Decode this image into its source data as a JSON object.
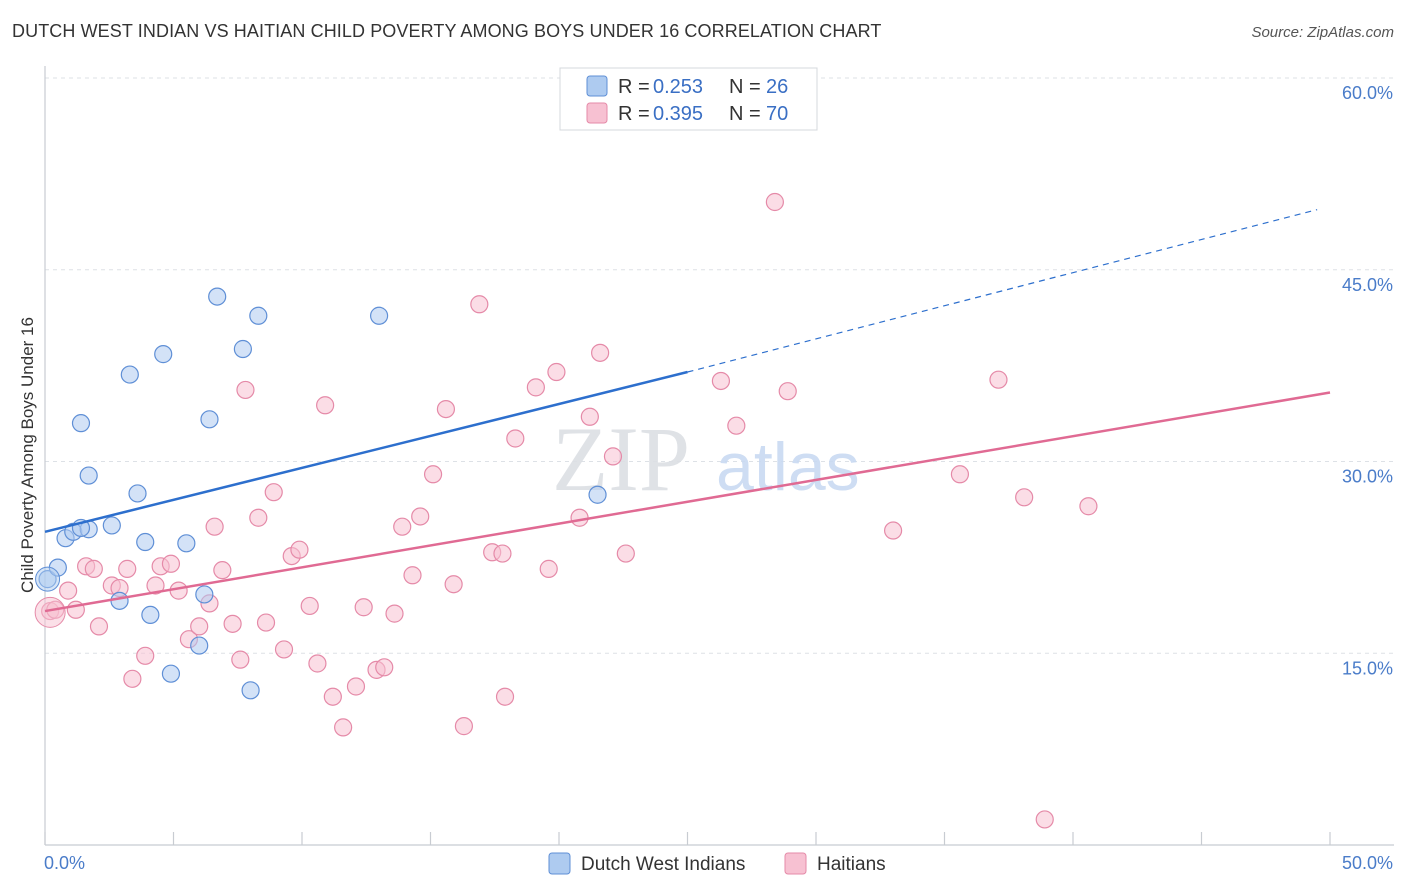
{
  "header": {
    "title": "DUTCH WEST INDIAN VS HAITIAN CHILD POVERTY AMONG BOYS UNDER 16 CORRELATION CHART",
    "source": "Source: ZipAtlas.com"
  },
  "watermark": {
    "zip": "ZIP",
    "atlas": "atlas"
  },
  "colors": {
    "blue_fill": "#aecbf0",
    "blue_stroke": "#5f8fd6",
    "blue_line": "#2d6fcd",
    "pink_fill": "#f7c1d2",
    "pink_stroke": "#e58aa8",
    "pink_line": "#e06a93",
    "tick": "#4a7cc9",
    "grid": "#dde1e6"
  },
  "legend": {
    "r_label": "R =",
    "n_label": "N =",
    "blue": {
      "r": "0.253",
      "n": "26"
    },
    "pink": {
      "r": "0.395",
      "n": "70"
    }
  },
  "chart_data": {
    "type": "scatter",
    "title": "DUTCH WEST INDIAN VS HAITIAN CHILD POVERTY AMONG BOYS UNDER 16 CORRELATION CHART",
    "xlabel": "",
    "ylabel": "Child Poverty Among Boys Under 16",
    "xlim": [
      0,
      50
    ],
    "ylim": [
      0,
      60
    ],
    "x_tick_labels": [
      "0.0%",
      "50.0%"
    ],
    "y_ticks": [
      15,
      30,
      45,
      60
    ],
    "y_tick_labels": [
      "15.0%",
      "30.0%",
      "45.0%",
      "60.0%"
    ],
    "series": [
      {
        "name": "Dutch West Indians",
        "r": 0.253,
        "n": 26,
        "trend": {
          "x0": 0,
          "y0": 24.5,
          "x1": 25,
          "y1": 37.0,
          "dashed_to": 49.5,
          "dashed_y": 49.7
        },
        "points": [
          [
            0.1,
            20.8
          ],
          [
            0.5,
            21.7
          ],
          [
            0.8,
            24.0
          ],
          [
            1.1,
            24.5
          ],
          [
            1.7,
            24.7
          ],
          [
            1.4,
            33.0
          ],
          [
            1.7,
            28.9
          ],
          [
            2.6,
            25.0
          ],
          [
            2.9,
            19.1
          ],
          [
            3.3,
            36.8
          ],
          [
            3.6,
            27.5
          ],
          [
            3.9,
            23.7
          ],
          [
            4.1,
            18.0
          ],
          [
            4.6,
            38.4
          ],
          [
            4.9,
            13.4
          ],
          [
            5.5,
            23.6
          ],
          [
            6.0,
            15.6
          ],
          [
            6.2,
            19.6
          ],
          [
            6.4,
            33.3
          ],
          [
            6.7,
            42.9
          ],
          [
            7.7,
            38.8
          ],
          [
            8.0,
            12.1
          ],
          [
            8.3,
            41.4
          ],
          [
            13.0,
            41.4
          ],
          [
            21.5,
            27.4
          ],
          [
            1.4,
            24.8
          ]
        ]
      },
      {
        "name": "Haitians",
        "r": 0.395,
        "n": 70,
        "trend": {
          "x0": 0,
          "y0": 18.3,
          "x1": 50,
          "y1": 35.4
        },
        "points": [
          [
            0.2,
            18.3
          ],
          [
            0.4,
            18.4
          ],
          [
            0.9,
            19.9
          ],
          [
            1.2,
            18.4
          ],
          [
            1.6,
            21.8
          ],
          [
            1.9,
            21.6
          ],
          [
            2.1,
            17.1
          ],
          [
            2.6,
            20.3
          ],
          [
            2.9,
            20.1
          ],
          [
            3.2,
            21.6
          ],
          [
            3.4,
            13.0
          ],
          [
            3.9,
            14.8
          ],
          [
            4.3,
            20.3
          ],
          [
            4.5,
            21.8
          ],
          [
            4.9,
            22.0
          ],
          [
            5.2,
            19.9
          ],
          [
            5.6,
            16.1
          ],
          [
            6.0,
            17.1
          ],
          [
            6.4,
            18.9
          ],
          [
            6.6,
            24.9
          ],
          [
            6.9,
            21.5
          ],
          [
            7.3,
            17.3
          ],
          [
            7.6,
            14.5
          ],
          [
            7.8,
            35.6
          ],
          [
            8.3,
            25.6
          ],
          [
            8.6,
            17.4
          ],
          [
            8.9,
            27.6
          ],
          [
            9.3,
            15.3
          ],
          [
            9.6,
            22.6
          ],
          [
            9.9,
            23.1
          ],
          [
            10.3,
            18.7
          ],
          [
            10.6,
            14.2
          ],
          [
            10.9,
            34.4
          ],
          [
            11.2,
            11.6
          ],
          [
            11.6,
            9.2
          ],
          [
            12.1,
            12.4
          ],
          [
            12.4,
            18.6
          ],
          [
            12.9,
            13.7
          ],
          [
            13.2,
            13.9
          ],
          [
            13.6,
            18.1
          ],
          [
            13.9,
            24.9
          ],
          [
            14.3,
            21.1
          ],
          [
            14.6,
            25.7
          ],
          [
            15.1,
            29.0
          ],
          [
            15.6,
            34.1
          ],
          [
            15.9,
            20.4
          ],
          [
            16.3,
            9.3
          ],
          [
            16.9,
            42.3
          ],
          [
            17.4,
            22.9
          ],
          [
            17.8,
            22.8
          ],
          [
            17.9,
            11.6
          ],
          [
            18.3,
            31.8
          ],
          [
            19.1,
            35.8
          ],
          [
            19.6,
            21.6
          ],
          [
            19.9,
            37.0
          ],
          [
            20.8,
            25.6
          ],
          [
            21.2,
            33.5
          ],
          [
            21.6,
            38.5
          ],
          [
            22.1,
            30.4
          ],
          [
            22.6,
            22.8
          ],
          [
            26.3,
            36.3
          ],
          [
            26.9,
            32.8
          ],
          [
            28.4,
            50.3
          ],
          [
            28.9,
            35.5
          ],
          [
            33.0,
            24.6
          ],
          [
            35.6,
            29.0
          ],
          [
            37.1,
            36.4
          ],
          [
            38.1,
            27.2
          ],
          [
            38.9,
            2.0
          ],
          [
            40.6,
            26.5
          ]
        ]
      }
    ]
  }
}
